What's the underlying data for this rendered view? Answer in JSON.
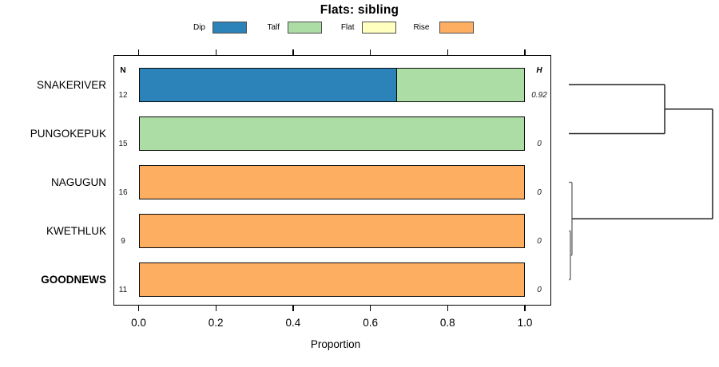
{
  "chart_data": {
    "type": "bar",
    "orientation": "horizontal-stacked-proportion",
    "title": "Flats: sibling",
    "xlabel": "Proportion",
    "xlim": [
      0.0,
      1.0
    ],
    "x_ticks": [
      "0.0",
      "0.2",
      "0.4",
      "0.6",
      "0.8",
      "1.0"
    ],
    "x_tick_values": [
      0.0,
      0.2,
      0.4,
      0.6,
      0.8,
      1.0
    ],
    "n_header": "N",
    "h_header": "H",
    "legend": [
      {
        "label": "Dip",
        "color": "#2B83BA"
      },
      {
        "label": "Talf",
        "color": "#ABDDA4"
      },
      {
        "label": "Flat",
        "color": "#FFFFBF"
      },
      {
        "label": "Rise",
        "color": "#FDAE61"
      }
    ],
    "palette": {
      "Dip": "#2B83BA",
      "Talf": "#ABDDA4",
      "Flat": "#FFFFBF",
      "Rise": "#FDAE61"
    },
    "categories": [
      "SNAKERIVER",
      "PUNGOKEPUK",
      "NAGUGUN",
      "KWETHLUK",
      "GOODNEWS"
    ],
    "rows": [
      {
        "label": "SNAKERIVER",
        "n": "12",
        "h": "0.92",
        "bold": false,
        "segments": [
          {
            "category": "Dip",
            "value": 0.667
          },
          {
            "category": "Talf",
            "value": 0.333
          }
        ]
      },
      {
        "label": "PUNGOKEPUK",
        "n": "15",
        "h": "0",
        "bold": false,
        "segments": [
          {
            "category": "Talf",
            "value": 1.0
          }
        ]
      },
      {
        "label": "NAGUGUN",
        "n": "16",
        "h": "0",
        "bold": false,
        "segments": [
          {
            "category": "Rise",
            "value": 1.0
          }
        ]
      },
      {
        "label": "KWETHLUK",
        "n": "9",
        "h": "0",
        "bold": false,
        "segments": [
          {
            "category": "Rise",
            "value": 1.0
          }
        ]
      },
      {
        "label": "GOODNEWS",
        "n": "11",
        "h": "0",
        "bold": true,
        "segments": [
          {
            "category": "Rise",
            "value": 1.0
          }
        ]
      }
    ],
    "series": [
      {
        "name": "Dip",
        "values": [
          0.667,
          0,
          0,
          0,
          0
        ]
      },
      {
        "name": "Talf",
        "values": [
          0.333,
          1,
          0,
          0,
          0
        ]
      },
      {
        "name": "Flat",
        "values": [
          0,
          0,
          0,
          0,
          0
        ]
      },
      {
        "name": "Rise",
        "values": [
          0,
          0,
          1,
          1,
          1
        ]
      }
    ],
    "dendrogram": {
      "leaf_order": [
        "SNAKERIVER",
        "PUNGOKEPUK",
        "NAGUGUN",
        "KWETHLUK",
        "GOODNEWS"
      ],
      "merges": [
        {
          "children": [
            "KWETHLUK",
            "GOODNEWS"
          ],
          "height": 0.011,
          "color": "#777777"
        },
        {
          "children": [
            "NAGUGUN",
            0
          ],
          "height": 0.022,
          "color": "#777777"
        },
        {
          "children": [
            "SNAKERIVER",
            "PUNGOKEPUK"
          ],
          "height": 0.667,
          "color": "#222222"
        },
        {
          "children": [
            2,
            1
          ],
          "height": 1.0,
          "color": "#222222"
        }
      ]
    },
    "grid": false,
    "legend_position": "top"
  }
}
